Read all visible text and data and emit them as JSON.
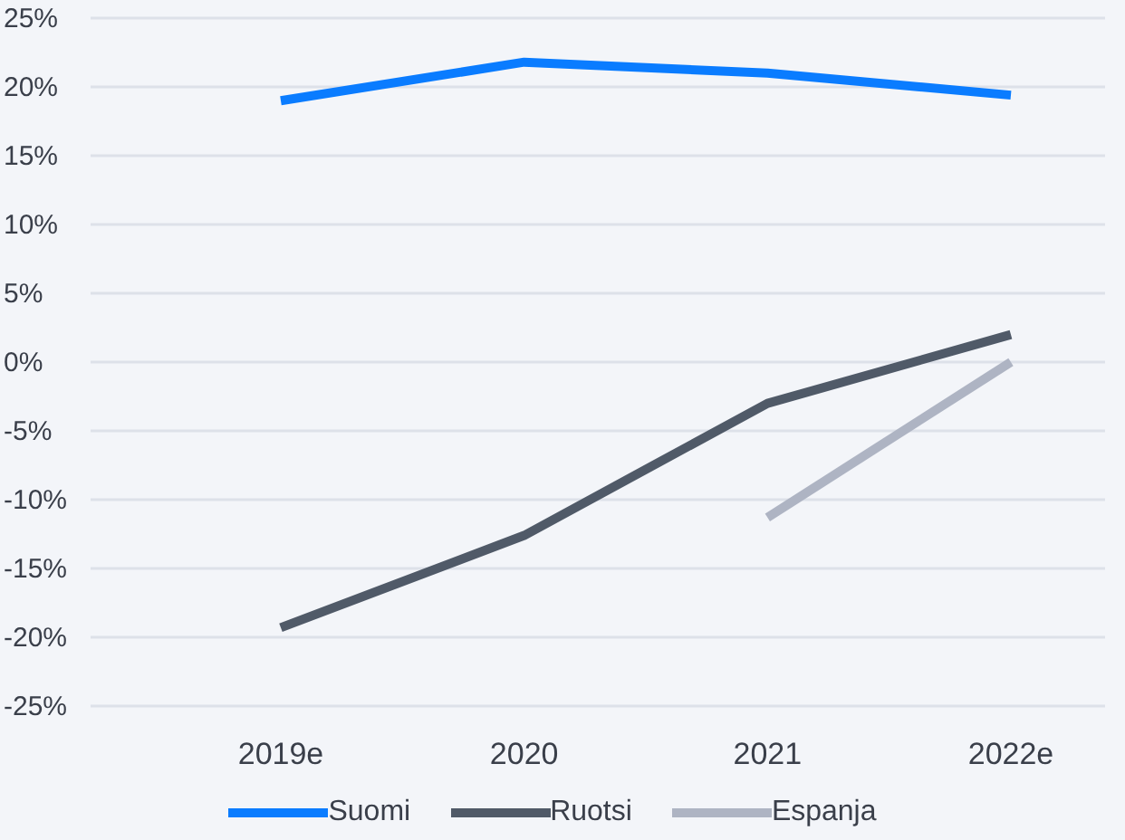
{
  "chart_data": {
    "type": "line",
    "categories": [
      "2019e",
      "2020",
      "2021",
      "2022e"
    ],
    "series": [
      {
        "name": "Suomi",
        "color": "#0a7cff",
        "values": [
          19,
          21.8,
          21,
          19.4
        ]
      },
      {
        "name": "Ruotsi",
        "color": "#505a68",
        "values": [
          -19.3,
          -12.6,
          -3,
          2
        ]
      },
      {
        "name": "Espanja",
        "color": "#aeb4c3",
        "values": [
          null,
          null,
          -11.3,
          0
        ]
      }
    ],
    "ylim": [
      -25,
      25
    ],
    "yticks": [
      {
        "value": -25,
        "label": "-25%"
      },
      {
        "value": -20,
        "label": "-20%"
      },
      {
        "value": -15,
        "label": "-15%"
      },
      {
        "value": -10,
        "label": "-10%"
      },
      {
        "value": -5,
        "label": "-5%"
      },
      {
        "value": 0,
        "label": "0%"
      },
      {
        "value": 5,
        "label": "5%"
      },
      {
        "value": 10,
        "label": "10%"
      },
      {
        "value": 15,
        "label": "15%"
      },
      {
        "value": 20,
        "label": "20%"
      },
      {
        "value": 25,
        "label": "25%"
      }
    ],
    "grid": "y",
    "legend": "bottom",
    "marker": "none",
    "line_style": "solid"
  }
}
